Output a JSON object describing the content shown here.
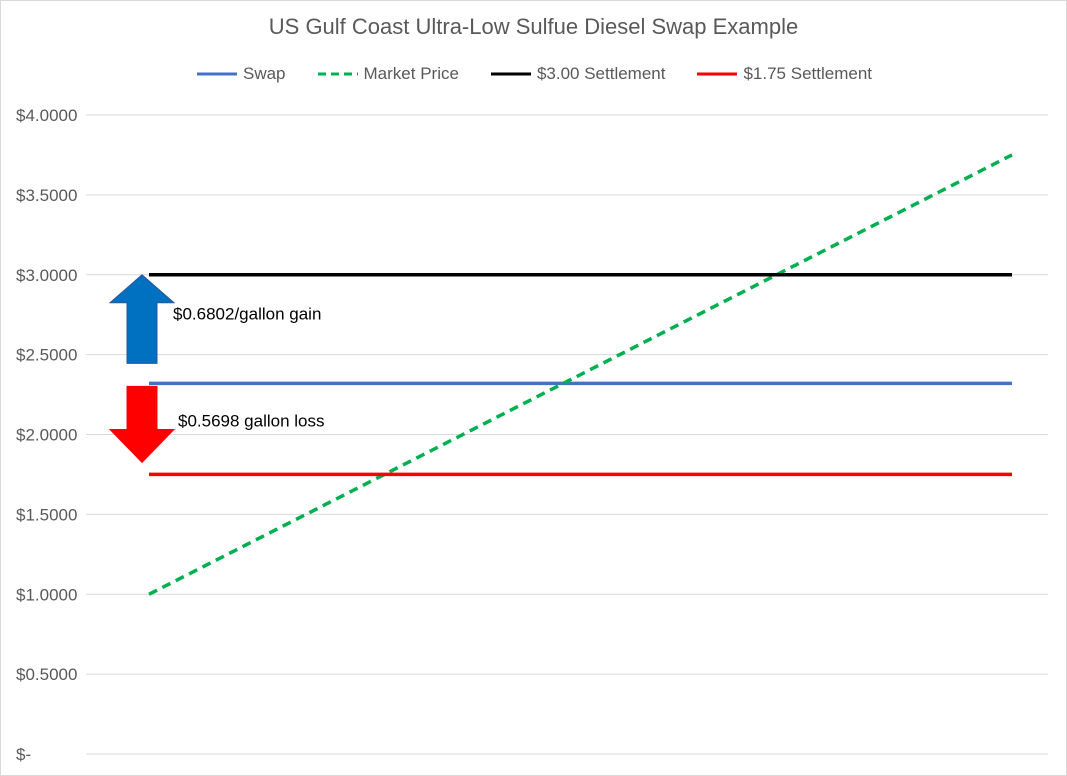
{
  "chart_data": {
    "type": "line",
    "title": "US Gulf Coast Ultra-Low Sulfue Diesel Swap Example",
    "xlabel": "",
    "ylabel": "",
    "ylim": [
      0,
      4
    ],
    "y_ticks": [
      4,
      3.5,
      3,
      2.5,
      2,
      1.5,
      1,
      0.5,
      0
    ],
    "y_tick_labels": [
      "$4.0000",
      "$3.5000",
      "$3.0000",
      "$2.5000",
      "$2.0000",
      "$1.5000",
      "$1.0000",
      "$0.5000",
      "$-"
    ],
    "x": [
      0,
      1
    ],
    "grid": true,
    "legend_placement": "top",
    "series": [
      {
        "name": "Swap",
        "values": [
          2.3198,
          2.3198
        ],
        "color": "#4472c4",
        "dash": "solid"
      },
      {
        "name": "Market Price",
        "values": [
          1.0,
          3.75
        ],
        "color": "#00b050",
        "dash": "dashed"
      },
      {
        "name": "$3.00 Settlement",
        "values": [
          3.0,
          3.0
        ],
        "color": "#000000",
        "dash": "solid"
      },
      {
        "name": "$1.75 Settlement",
        "values": [
          1.75,
          1.75
        ],
        "color": "#ff0000",
        "dash": "solid"
      }
    ],
    "annotations": [
      {
        "text": "$0.6802/gallon gain",
        "arrow": "up",
        "color": "#0070c0",
        "from": 2.3198,
        "to": 3.0
      },
      {
        "text": "$0.5698 gallon loss",
        "arrow": "down",
        "color": "#ff0000",
        "from": 2.3198,
        "to": 1.75
      }
    ]
  }
}
